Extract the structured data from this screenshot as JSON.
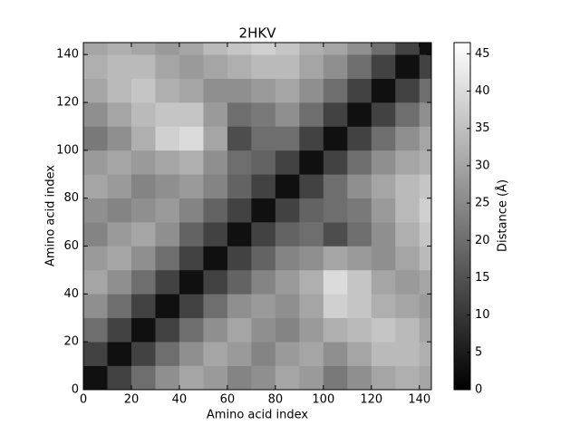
{
  "chart_data": {
    "type": "heatmap",
    "title": "2HKV",
    "x_label": "Amino acid index",
    "y_label": "Amino acid index",
    "x_edges": [
      0,
      10,
      20,
      30,
      40,
      50,
      60,
      70,
      80,
      90,
      100,
      110,
      120,
      130,
      140,
      145
    ],
    "y_edges": [
      0,
      10,
      20,
      30,
      40,
      50,
      60,
      70,
      80,
      90,
      100,
      110,
      120,
      130,
      140,
      145
    ],
    "z": [
      [
        3,
        12,
        20,
        26,
        30,
        28,
        24,
        26,
        30,
        28,
        22,
        26,
        30,
        32,
        30
      ],
      [
        12,
        3,
        12,
        20,
        26,
        30,
        28,
        24,
        28,
        30,
        26,
        30,
        34,
        34,
        32
      ],
      [
        20,
        12,
        3,
        12,
        20,
        26,
        30,
        26,
        24,
        28,
        32,
        34,
        36,
        34,
        30
      ],
      [
        26,
        20,
        12,
        3,
        12,
        20,
        26,
        28,
        26,
        30,
        38,
        36,
        32,
        30,
        28
      ],
      [
        30,
        26,
        20,
        12,
        3,
        12,
        18,
        24,
        28,
        32,
        40,
        36,
        30,
        28,
        30
      ],
      [
        28,
        30,
        26,
        20,
        12,
        3,
        12,
        18,
        24,
        26,
        30,
        28,
        26,
        30,
        34
      ],
      [
        24,
        28,
        30,
        26,
        18,
        12,
        3,
        12,
        18,
        20,
        14,
        20,
        26,
        32,
        36
      ],
      [
        26,
        24,
        26,
        28,
        24,
        18,
        12,
        3,
        12,
        18,
        20,
        22,
        28,
        34,
        38
      ],
      [
        30,
        28,
        24,
        26,
        28,
        24,
        18,
        12,
        3,
        12,
        20,
        26,
        30,
        34,
        36
      ],
      [
        28,
        30,
        28,
        30,
        32,
        26,
        20,
        18,
        12,
        3,
        12,
        20,
        26,
        30,
        32
      ],
      [
        22,
        26,
        32,
        38,
        40,
        30,
        14,
        20,
        20,
        12,
        3,
        12,
        20,
        26,
        30
      ],
      [
        26,
        30,
        34,
        36,
        36,
        28,
        20,
        22,
        26,
        20,
        12,
        3,
        12,
        20,
        26
      ],
      [
        30,
        34,
        36,
        32,
        30,
        26,
        26,
        28,
        30,
        26,
        20,
        12,
        3,
        12,
        20
      ],
      [
        32,
        34,
        34,
        30,
        28,
        30,
        32,
        34,
        34,
        30,
        26,
        20,
        12,
        3,
        12
      ],
      [
        30,
        32,
        30,
        28,
        30,
        34,
        36,
        38,
        36,
        32,
        30,
        26,
        20,
        12,
        3
      ]
    ],
    "xlim": [
      0,
      145
    ],
    "ylim": [
      0,
      145
    ],
    "xticks": [
      0,
      20,
      40,
      60,
      80,
      100,
      120,
      140
    ],
    "yticks": [
      0,
      20,
      40,
      60,
      80,
      100,
      120,
      140
    ],
    "colormap": "gray",
    "colorbar": {
      "label": "Distance (Å)",
      "zlim": [
        0,
        46.5
      ],
      "ticks": [
        0,
        5,
        10,
        15,
        20,
        25,
        30,
        35,
        40,
        45
      ]
    }
  }
}
